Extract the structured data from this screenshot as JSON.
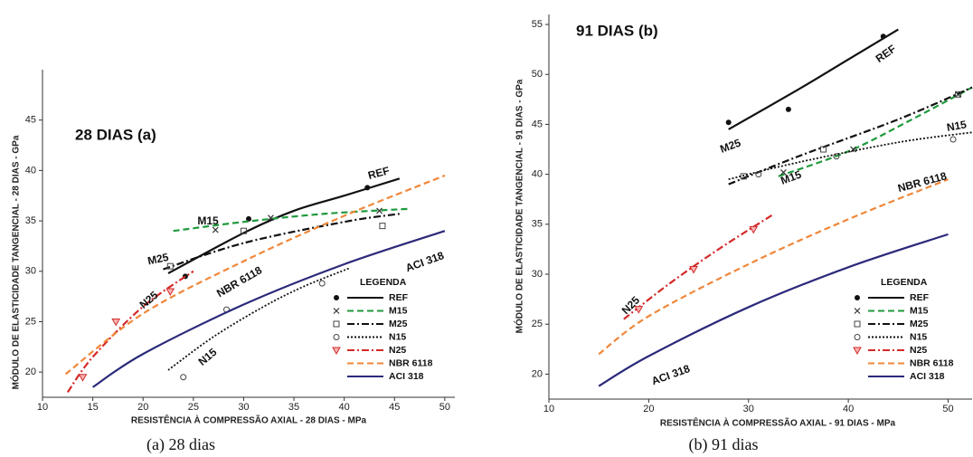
{
  "chart_data": [
    {
      "type": "line",
      "title": "28 DIAS (a)",
      "caption": "(a) 28 dias",
      "x_label": "RESISTÊNCIA À COMPRESSÃO AXIAL - 28 DIAS - MPa",
      "y_label": "MÓDULO DE ELASTICIDADE TANGENCIAL - 28 DIAS - GPa",
      "xlim": [
        10,
        51
      ],
      "ylim": [
        17.5,
        50
      ],
      "xticks": [
        10,
        15,
        20,
        25,
        30,
        35,
        40,
        45,
        50
      ],
      "yticks": [
        20,
        25,
        30,
        35,
        40,
        45
      ],
      "legend_title": "LEGENDA",
      "series": [
        {
          "name": "REF",
          "color": "#111111",
          "dash": "solid",
          "marker": "dot",
          "x": [
            24.2,
            30.5,
            42.3
          ],
          "values": [
            29.5,
            35.2,
            38.3
          ],
          "curve_x": [
            22.5,
            30,
            35,
            40,
            45.5
          ],
          "curve_y": [
            29.8,
            33.8,
            36,
            37.5,
            39.2
          ]
        },
        {
          "name": "M15",
          "color": "#1f9a3c",
          "dash": "dashed",
          "marker": "x",
          "x": [
            27.2,
            32.7,
            43.5
          ],
          "values": [
            34.1,
            35.3,
            36.0
          ],
          "curve_x": [
            23,
            30,
            38,
            46.5
          ],
          "curve_y": [
            34,
            34.9,
            35.7,
            36.2
          ]
        },
        {
          "name": "M25",
          "color": "#111111",
          "dash": "dashdot",
          "marker": "square",
          "x": [
            22.7,
            30,
            43.8
          ],
          "values": [
            30.5,
            34,
            34.5
          ],
          "curve_x": [
            22,
            30,
            40,
            45.5
          ],
          "curve_y": [
            30.2,
            32.8,
            34.9,
            35.7
          ]
        },
        {
          "name": "N15",
          "color": "#111111",
          "dash": "dotted",
          "marker": "circle",
          "x": [
            24,
            28.3,
            37.8
          ],
          "values": [
            19.5,
            26.2,
            28.8
          ],
          "curve_x": [
            22.5,
            27,
            32,
            36,
            40.5
          ],
          "curve_y": [
            20.2,
            23.5,
            26.5,
            28.5,
            30.3
          ]
        },
        {
          "name": "N25",
          "color": "#d42a2a",
          "dash": "dashdot",
          "marker": "triangle",
          "x": [
            14,
            17.3,
            22.7
          ],
          "values": [
            19.5,
            25,
            28
          ],
          "curve_x": [
            12.5,
            15,
            20,
            25
          ],
          "curve_y": [
            18,
            21.5,
            26.5,
            30
          ]
        },
        {
          "name": "NBR 6118",
          "color": "#f0873a",
          "dash": "dashed",
          "marker": "none",
          "x": [],
          "values": [],
          "curve_x": [
            12.3,
            20,
            30,
            40,
            50
          ],
          "curve_y": [
            19.8,
            25.8,
            31,
            35.5,
            39.5
          ]
        },
        {
          "name": "ACI 318",
          "color": "#2b2a7a",
          "dash": "solid",
          "marker": "none",
          "x": [],
          "values": [],
          "curve_x": [
            15,
            20,
            30,
            40,
            50
          ],
          "curve_y": [
            18.5,
            21.8,
            26.7,
            30.7,
            34
          ]
        }
      ]
    },
    {
      "type": "line",
      "title": "91 DIAS (b)",
      "caption": "(b) 91 dias",
      "x_label": "RESISTÊNCIA À COMPRESSÃO AXIAL - 91 DIAS - MPa",
      "y_label": "MÓDULO DE ELASTICIDADE TANGENCIAL - 91 DIAS - GPa",
      "xlim": [
        10,
        52.4
      ],
      "ylim": [
        17.5,
        56
      ],
      "xticks": [
        10,
        20,
        30,
        40,
        50
      ],
      "yticks": [
        20,
        25,
        30,
        35,
        40,
        45,
        50,
        55
      ],
      "legend_title": "LEGENDA",
      "series": [
        {
          "name": "REF",
          "color": "#111111",
          "dash": "solid",
          "marker": "dot",
          "x": [
            28,
            34,
            43.5
          ],
          "values": [
            45.2,
            46.5,
            53.8
          ],
          "curve_x": [
            28,
            35,
            40,
            45
          ],
          "curve_y": [
            44.5,
            48.5,
            51.5,
            54.5
          ]
        },
        {
          "name": "M15",
          "color": "#1f9a3c",
          "dash": "dashed",
          "marker": "x",
          "x": [
            33.5,
            40.5,
            51
          ],
          "values": [
            40.2,
            42.5,
            48
          ],
          "curve_x": [
            33,
            40,
            46,
            52.4
          ],
          "curve_y": [
            39.8,
            42.3,
            45.3,
            48.7
          ]
        },
        {
          "name": "M25",
          "color": "#111111",
          "dash": "dashdot",
          "marker": "square",
          "x": [
            29.5,
            37.5,
            51
          ],
          "values": [
            39.8,
            42.5,
            48
          ],
          "curve_x": [
            28,
            35,
            45,
            52.4
          ],
          "curve_y": [
            39,
            41.8,
            45.5,
            48.7
          ]
        },
        {
          "name": "N15",
          "color": "#111111",
          "dash": "dotted",
          "marker": "circle",
          "x": [
            31,
            38.8,
            50.5
          ],
          "values": [
            40,
            41.8,
            43.5
          ],
          "curve_x": [
            28,
            35,
            45,
            52.4
          ],
          "curve_y": [
            39.5,
            41.2,
            43.2,
            44.2
          ]
        },
        {
          "name": "N25",
          "color": "#d42a2a",
          "dash": "dashdot",
          "marker": "triangle",
          "x": [
            19,
            24.5,
            30.5
          ],
          "values": [
            26.5,
            30.5,
            34.5
          ],
          "curve_x": [
            17.5,
            22,
            27,
            32.5
          ],
          "curve_y": [
            25.5,
            29,
            32.5,
            36
          ]
        },
        {
          "name": "NBR 6118",
          "color": "#f0873a",
          "dash": "dashed",
          "marker": "none",
          "x": [],
          "values": [],
          "curve_x": [
            15,
            20,
            30,
            40,
            50
          ],
          "curve_y": [
            22,
            25.8,
            31,
            35.5,
            39.5
          ]
        },
        {
          "name": "ACI 318",
          "color": "#2b2a7a",
          "dash": "solid",
          "marker": "none",
          "x": [],
          "values": [],
          "curve_x": [
            15,
            20,
            30,
            40,
            50
          ],
          "curve_y": [
            18.8,
            21.8,
            26.7,
            30.7,
            34
          ]
        }
      ]
    }
  ]
}
